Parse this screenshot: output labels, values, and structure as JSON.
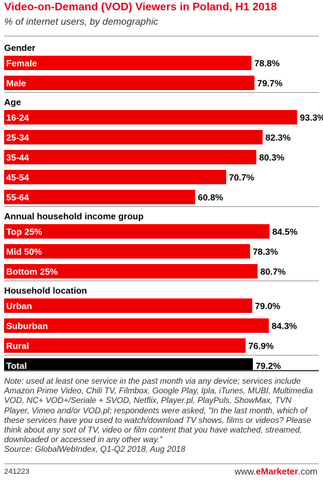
{
  "title": "Video-on-Demand (VOD) Viewers in Poland, H1 2018",
  "subtitle": "% of internet users, by demographic",
  "chart_data": {
    "type": "bar",
    "orientation": "horizontal",
    "unit": "%",
    "xlim": [
      0,
      100
    ],
    "groups": [
      {
        "label": "Gender",
        "items": [
          {
            "label": "Female",
            "value": 78.8
          },
          {
            "label": "Male",
            "value": 79.7
          }
        ]
      },
      {
        "label": "Age",
        "items": [
          {
            "label": "16-24",
            "value": 93.3
          },
          {
            "label": "25-34",
            "value": 82.3
          },
          {
            "label": "35-44",
            "value": 80.3
          },
          {
            "label": "45-54",
            "value": 70.7
          },
          {
            "label": "55-64",
            "value": 60.8
          }
        ]
      },
      {
        "label": "Annual household income group",
        "items": [
          {
            "label": "Top 25%",
            "value": 84.5
          },
          {
            "label": "Mid 50%",
            "value": 78.3
          },
          {
            "label": "Bottom 25%",
            "value": 80.7
          }
        ]
      },
      {
        "label": "Household location",
        "items": [
          {
            "label": "Urban",
            "value": 79.0
          },
          {
            "label": "Suburban",
            "value": 84.3
          },
          {
            "label": "Rural",
            "value": 76.9
          }
        ]
      }
    ],
    "total": {
      "label": "Total",
      "value": 79.2
    }
  },
  "colors": {
    "bar": "#ee0000",
    "total_bar": "#000000",
    "title": "#e8001c"
  },
  "note": "Note: used at least one service in the past month via any device; services include Amazon Prime Video, Chili TV, Filmbox, Google Play, Ipla, iTunes, MUBI, Multimedia VOD, NC+ VOD+/Seriale + SVOD, Netflix, Player.pl, PlayPuls, ShowMax, TVN Player, Vimeo and/or VOD.pl; respondents were asked, \"In the last month, which of these services have you used to watch/download TV shows, films or videos? Please think about any sort of TV, video or film content that you have watched, streamed, downloaded or accessed in any other way.\"",
  "source": "Source: GlobalWebIndex, Q1-Q2 2018, Aug 2018",
  "footer": {
    "chart_id": "241223",
    "brand_prefix": "www.",
    "brand_name": "eMarketer",
    "brand_suffix": ".com"
  }
}
